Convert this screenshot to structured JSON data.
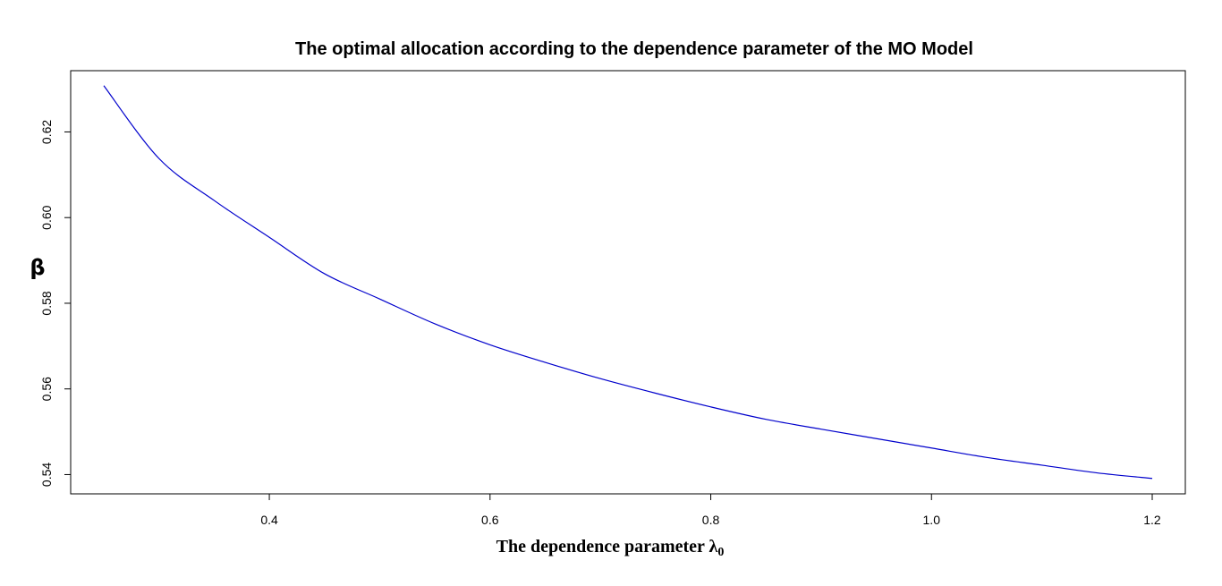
{
  "chart_data": {
    "type": "line",
    "title": "The optimal allocation according to the dependence parameter of the MO Model",
    "xlabel": "The dependence parameter λ",
    "xlabel_subscript": "0",
    "ylabel": "β",
    "xlim": [
      0.22,
      1.23
    ],
    "ylim": [
      0.5355,
      0.6343
    ],
    "x_ticks": [
      0.4,
      0.6,
      0.8,
      1.0,
      1.2
    ],
    "x_tick_labels": [
      "0.4",
      "0.6",
      "0.8",
      "1.0",
      "1.2"
    ],
    "y_ticks": [
      0.54,
      0.56,
      0.58,
      0.6,
      0.62
    ],
    "y_tick_labels": [
      "0.54",
      "0.56",
      "0.58",
      "0.60",
      "0.62"
    ],
    "grid": false,
    "line_color": "#0000cc",
    "series": [
      {
        "x": [
          0.25,
          0.3,
          0.35,
          0.4,
          0.45,
          0.5,
          0.55,
          0.6,
          0.65,
          0.7,
          0.75,
          0.8,
          0.85,
          0.9,
          0.95,
          1.0,
          1.05,
          1.1,
          1.15,
          1.2
        ],
        "values": [
          0.6308,
          0.6138,
          0.604,
          0.5954,
          0.5869,
          0.581,
          0.5752,
          0.5703,
          0.5662,
          0.5624,
          0.559,
          0.5558,
          0.5529,
          0.5506,
          0.5484,
          0.5462,
          0.544,
          0.5422,
          0.5404,
          0.5391
        ]
      }
    ]
  }
}
